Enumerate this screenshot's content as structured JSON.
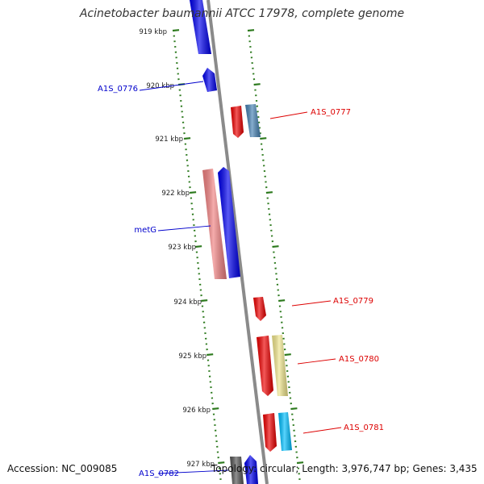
{
  "title": "Acinetobacter baumannii ATCC 17978, complete genome",
  "footer": {
    "accession_label": "Accession:",
    "accession": "NC_009085",
    "topology_label": "Topology:",
    "topology": "circular",
    "length_label": "Length:",
    "length": "3,976,747 bp",
    "genes_label": "Genes:",
    "genes": "3,435"
  },
  "colors": {
    "backbone": "#8a8a8a",
    "tick": "#2d7a1e",
    "forward_label": "#0000cc",
    "reverse_label": "#dd0000"
  },
  "ticks": [
    {
      "label": "919 kbp"
    },
    {
      "label": "920 kbp"
    },
    {
      "label": "921 kbp"
    },
    {
      "label": "922 kbp"
    },
    {
      "label": "923 kbp"
    },
    {
      "label": "924 kbp"
    },
    {
      "label": "925 kbp"
    },
    {
      "label": "926 kbp"
    },
    {
      "label": "927 kbp"
    }
  ],
  "genes": [
    {
      "name": "",
      "strand": "forward",
      "color": "#0000ee"
    },
    {
      "name": "A1S_0776",
      "strand": "forward",
      "color": "#0000ee"
    },
    {
      "name": "A1S_0777",
      "strand": "reverse",
      "color": "#ee0000"
    },
    {
      "name": "",
      "strand": "reverse",
      "color": "#4682b4"
    },
    {
      "name": "",
      "strand": "forward",
      "color": "#f08080"
    },
    {
      "name": "metG",
      "strand": "forward",
      "color": "#0000ee"
    },
    {
      "name": "A1S_0779",
      "strand": "reverse",
      "color": "#ee0000"
    },
    {
      "name": "",
      "strand": "reverse",
      "color": "#ee0000"
    },
    {
      "name": "A1S_0780",
      "strand": "reverse",
      "color": "#f0e68c"
    },
    {
      "name": "",
      "strand": "reverse",
      "color": "#ee0000"
    },
    {
      "name": "A1S_0781",
      "strand": "reverse",
      "color": "#00bfff"
    },
    {
      "name": "",
      "strand": "forward",
      "color": "#555555"
    },
    {
      "name": "A1S_0782",
      "strand": "forward",
      "color": "#0000ee"
    }
  ]
}
